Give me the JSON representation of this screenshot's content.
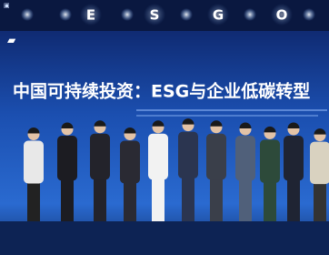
{
  "banner": {
    "letters": [
      "E",
      "S",
      "G",
      "O"
    ]
  },
  "title": "中国可持续投资：ESG与企业低碳转型"
}
